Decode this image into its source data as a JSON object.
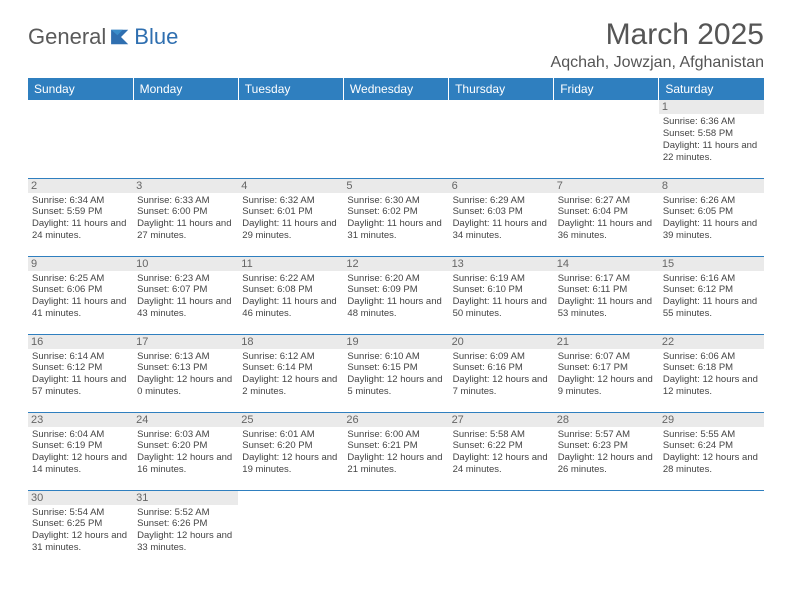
{
  "logo": {
    "part1": "General",
    "part2": "Blue"
  },
  "title": "March 2025",
  "location": "Aqchah, Jowzjan, Afghanistan",
  "colors": {
    "header_bg": "#2f7fbf",
    "header_text": "#ffffff",
    "daynum_bg": "#eaeaea",
    "border": "#2f7fbf",
    "logo_gray": "#5a5a5a",
    "logo_blue": "#2f6fb0"
  },
  "day_headers": [
    "Sunday",
    "Monday",
    "Tuesday",
    "Wednesday",
    "Thursday",
    "Friday",
    "Saturday"
  ],
  "weeks": [
    [
      {
        "n": "",
        "sr": "",
        "ss": "",
        "dl": ""
      },
      {
        "n": "",
        "sr": "",
        "ss": "",
        "dl": ""
      },
      {
        "n": "",
        "sr": "",
        "ss": "",
        "dl": ""
      },
      {
        "n": "",
        "sr": "",
        "ss": "",
        "dl": ""
      },
      {
        "n": "",
        "sr": "",
        "ss": "",
        "dl": ""
      },
      {
        "n": "",
        "sr": "",
        "ss": "",
        "dl": ""
      },
      {
        "n": "1",
        "sr": "Sunrise: 6:36 AM",
        "ss": "Sunset: 5:58 PM",
        "dl": "Daylight: 11 hours and 22 minutes."
      }
    ],
    [
      {
        "n": "2",
        "sr": "Sunrise: 6:34 AM",
        "ss": "Sunset: 5:59 PM",
        "dl": "Daylight: 11 hours and 24 minutes."
      },
      {
        "n": "3",
        "sr": "Sunrise: 6:33 AM",
        "ss": "Sunset: 6:00 PM",
        "dl": "Daylight: 11 hours and 27 minutes."
      },
      {
        "n": "4",
        "sr": "Sunrise: 6:32 AM",
        "ss": "Sunset: 6:01 PM",
        "dl": "Daylight: 11 hours and 29 minutes."
      },
      {
        "n": "5",
        "sr": "Sunrise: 6:30 AM",
        "ss": "Sunset: 6:02 PM",
        "dl": "Daylight: 11 hours and 31 minutes."
      },
      {
        "n": "6",
        "sr": "Sunrise: 6:29 AM",
        "ss": "Sunset: 6:03 PM",
        "dl": "Daylight: 11 hours and 34 minutes."
      },
      {
        "n": "7",
        "sr": "Sunrise: 6:27 AM",
        "ss": "Sunset: 6:04 PM",
        "dl": "Daylight: 11 hours and 36 minutes."
      },
      {
        "n": "8",
        "sr": "Sunrise: 6:26 AM",
        "ss": "Sunset: 6:05 PM",
        "dl": "Daylight: 11 hours and 39 minutes."
      }
    ],
    [
      {
        "n": "9",
        "sr": "Sunrise: 6:25 AM",
        "ss": "Sunset: 6:06 PM",
        "dl": "Daylight: 11 hours and 41 minutes."
      },
      {
        "n": "10",
        "sr": "Sunrise: 6:23 AM",
        "ss": "Sunset: 6:07 PM",
        "dl": "Daylight: 11 hours and 43 minutes."
      },
      {
        "n": "11",
        "sr": "Sunrise: 6:22 AM",
        "ss": "Sunset: 6:08 PM",
        "dl": "Daylight: 11 hours and 46 minutes."
      },
      {
        "n": "12",
        "sr": "Sunrise: 6:20 AM",
        "ss": "Sunset: 6:09 PM",
        "dl": "Daylight: 11 hours and 48 minutes."
      },
      {
        "n": "13",
        "sr": "Sunrise: 6:19 AM",
        "ss": "Sunset: 6:10 PM",
        "dl": "Daylight: 11 hours and 50 minutes."
      },
      {
        "n": "14",
        "sr": "Sunrise: 6:17 AM",
        "ss": "Sunset: 6:11 PM",
        "dl": "Daylight: 11 hours and 53 minutes."
      },
      {
        "n": "15",
        "sr": "Sunrise: 6:16 AM",
        "ss": "Sunset: 6:12 PM",
        "dl": "Daylight: 11 hours and 55 minutes."
      }
    ],
    [
      {
        "n": "16",
        "sr": "Sunrise: 6:14 AM",
        "ss": "Sunset: 6:12 PM",
        "dl": "Daylight: 11 hours and 57 minutes."
      },
      {
        "n": "17",
        "sr": "Sunrise: 6:13 AM",
        "ss": "Sunset: 6:13 PM",
        "dl": "Daylight: 12 hours and 0 minutes."
      },
      {
        "n": "18",
        "sr": "Sunrise: 6:12 AM",
        "ss": "Sunset: 6:14 PM",
        "dl": "Daylight: 12 hours and 2 minutes."
      },
      {
        "n": "19",
        "sr": "Sunrise: 6:10 AM",
        "ss": "Sunset: 6:15 PM",
        "dl": "Daylight: 12 hours and 5 minutes."
      },
      {
        "n": "20",
        "sr": "Sunrise: 6:09 AM",
        "ss": "Sunset: 6:16 PM",
        "dl": "Daylight: 12 hours and 7 minutes."
      },
      {
        "n": "21",
        "sr": "Sunrise: 6:07 AM",
        "ss": "Sunset: 6:17 PM",
        "dl": "Daylight: 12 hours and 9 minutes."
      },
      {
        "n": "22",
        "sr": "Sunrise: 6:06 AM",
        "ss": "Sunset: 6:18 PM",
        "dl": "Daylight: 12 hours and 12 minutes."
      }
    ],
    [
      {
        "n": "23",
        "sr": "Sunrise: 6:04 AM",
        "ss": "Sunset: 6:19 PM",
        "dl": "Daylight: 12 hours and 14 minutes."
      },
      {
        "n": "24",
        "sr": "Sunrise: 6:03 AM",
        "ss": "Sunset: 6:20 PM",
        "dl": "Daylight: 12 hours and 16 minutes."
      },
      {
        "n": "25",
        "sr": "Sunrise: 6:01 AM",
        "ss": "Sunset: 6:20 PM",
        "dl": "Daylight: 12 hours and 19 minutes."
      },
      {
        "n": "26",
        "sr": "Sunrise: 6:00 AM",
        "ss": "Sunset: 6:21 PM",
        "dl": "Daylight: 12 hours and 21 minutes."
      },
      {
        "n": "27",
        "sr": "Sunrise: 5:58 AM",
        "ss": "Sunset: 6:22 PM",
        "dl": "Daylight: 12 hours and 24 minutes."
      },
      {
        "n": "28",
        "sr": "Sunrise: 5:57 AM",
        "ss": "Sunset: 6:23 PM",
        "dl": "Daylight: 12 hours and 26 minutes."
      },
      {
        "n": "29",
        "sr": "Sunrise: 5:55 AM",
        "ss": "Sunset: 6:24 PM",
        "dl": "Daylight: 12 hours and 28 minutes."
      }
    ],
    [
      {
        "n": "30",
        "sr": "Sunrise: 5:54 AM",
        "ss": "Sunset: 6:25 PM",
        "dl": "Daylight: 12 hours and 31 minutes."
      },
      {
        "n": "31",
        "sr": "Sunrise: 5:52 AM",
        "ss": "Sunset: 6:26 PM",
        "dl": "Daylight: 12 hours and 33 minutes."
      },
      {
        "n": "",
        "sr": "",
        "ss": "",
        "dl": ""
      },
      {
        "n": "",
        "sr": "",
        "ss": "",
        "dl": ""
      },
      {
        "n": "",
        "sr": "",
        "ss": "",
        "dl": ""
      },
      {
        "n": "",
        "sr": "",
        "ss": "",
        "dl": ""
      },
      {
        "n": "",
        "sr": "",
        "ss": "",
        "dl": ""
      }
    ]
  ]
}
